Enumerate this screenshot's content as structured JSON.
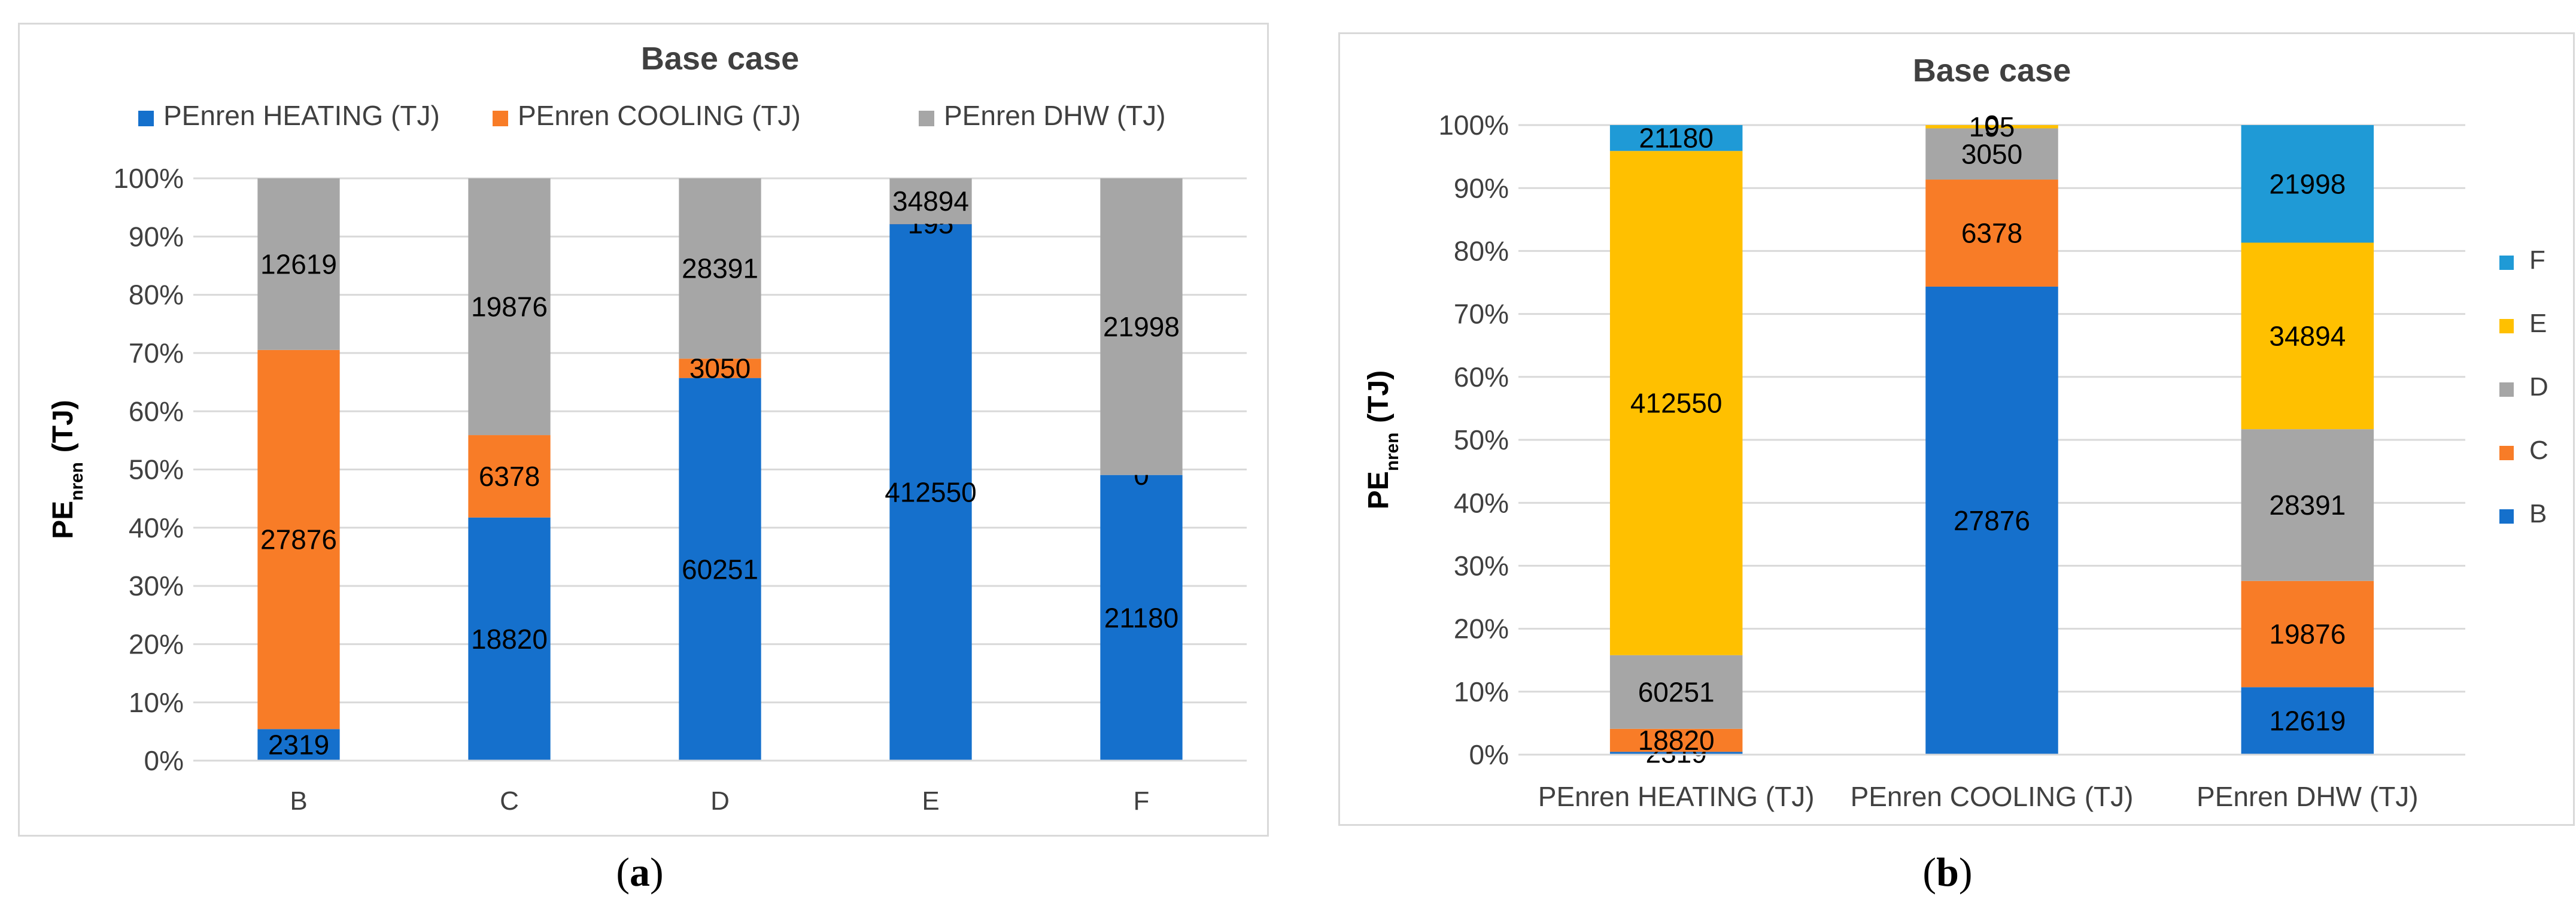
{
  "chart_data": [
    {
      "id": "a",
      "type": "bar",
      "stacked": "percent",
      "title": "Base case",
      "ylabel": "PE_nren (TJ)",
      "ylabel_main": "PE",
      "ylabel_sub": "nren",
      "ylabel_unit": "(TJ)",
      "xlabel": "",
      "ylim": [
        0,
        100
      ],
      "yticks": [
        "0%",
        "10%",
        "20%",
        "30%",
        "40%",
        "50%",
        "60%",
        "70%",
        "80%",
        "90%",
        "100%"
      ],
      "grid": true,
      "legend_position": "top",
      "categories": [
        "B",
        "C",
        "D",
        "E",
        "F"
      ],
      "series": [
        {
          "name": "PEnren HEATING (TJ)",
          "color": "#1570cc",
          "values": [
            2319,
            18820,
            60251,
            412550,
            21180
          ]
        },
        {
          "name": "PEnren COOLING (TJ)",
          "color": "#f87c27",
          "values": [
            27876,
            6378,
            3050,
            195,
            0
          ]
        },
        {
          "name": "PEnren DHW (TJ)",
          "color": "#a6a6a6",
          "values": [
            12619,
            19876,
            28391,
            34894,
            21998
          ]
        }
      ]
    },
    {
      "id": "b",
      "type": "bar",
      "stacked": "percent",
      "title": "Base case",
      "ylabel": "PE_nren (TJ)",
      "ylabel_main": "PE",
      "ylabel_sub": "nren",
      "ylabel_unit": "(TJ)",
      "xlabel": "",
      "ylim": [
        0,
        100
      ],
      "yticks": [
        "0%",
        "10%",
        "20%",
        "30%",
        "40%",
        "50%",
        "60%",
        "70%",
        "80%",
        "90%",
        "100%"
      ],
      "grid": true,
      "legend_position": "right",
      "categories": [
        "PEnren HEATING (TJ)",
        "PEnren COOLING (TJ)",
        "PEnren DHW (TJ)"
      ],
      "series": [
        {
          "name": "B",
          "color": "#1570cc",
          "values": [
            2319,
            27876,
            12619
          ]
        },
        {
          "name": "C",
          "color": "#f87c27",
          "values": [
            18820,
            6378,
            19876
          ]
        },
        {
          "name": "D",
          "color": "#a6a6a6",
          "values": [
            60251,
            3050,
            28391
          ]
        },
        {
          "name": "E",
          "color": "#ffc000",
          "values": [
            412550,
            195,
            34894
          ]
        },
        {
          "name": "F",
          "color": "#1f9ad6",
          "values": [
            21180,
            0,
            21998
          ]
        }
      ]
    }
  ],
  "captions": {
    "a": "a",
    "b": "b"
  }
}
